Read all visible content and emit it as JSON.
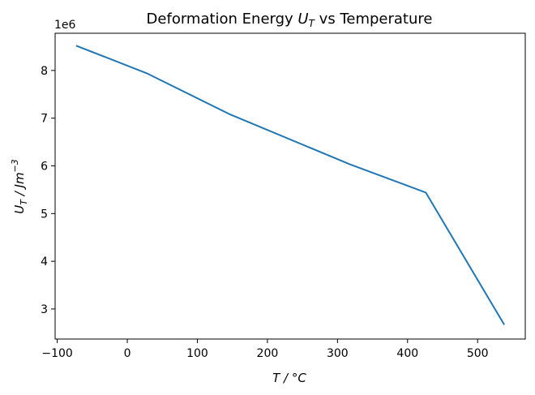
{
  "chart_data": {
    "type": "line",
    "title": "Deformation Energy U_T vs Temperature",
    "title_parts": {
      "prefix": "Deformation Energy ",
      "var": "U",
      "sub": "T",
      "suffix": " vs Temperature"
    },
    "xlabel": "T / °C",
    "ylabel": "U_T / Jm^-3",
    "ylabel_parts": {
      "var": "U",
      "sub": "T",
      "unit": " / Jm",
      "sup": "−3"
    },
    "y_offset_text": "1e6",
    "xlim": [
      -103,
      568
    ],
    "ylim": [
      2.37,
      8.78
    ],
    "x_ticks": [
      -100,
      0,
      100,
      200,
      300,
      400,
      500
    ],
    "x_tick_labels": [
      "−100",
      "0",
      "100",
      "200",
      "300",
      "400",
      "500"
    ],
    "y_ticks": [
      3,
      4,
      5,
      6,
      7,
      8
    ],
    "y_tick_labels": [
      "3",
      "4",
      "5",
      "6",
      "7",
      "8"
    ],
    "grid": false,
    "legend": "none",
    "series": [
      {
        "color": "#1f77b4",
        "x": [
          -73,
          28,
          145,
          318,
          426,
          538
        ],
        "y": [
          8.52,
          7.94,
          7.09,
          6.03,
          5.44,
          2.67
        ]
      }
    ]
  }
}
